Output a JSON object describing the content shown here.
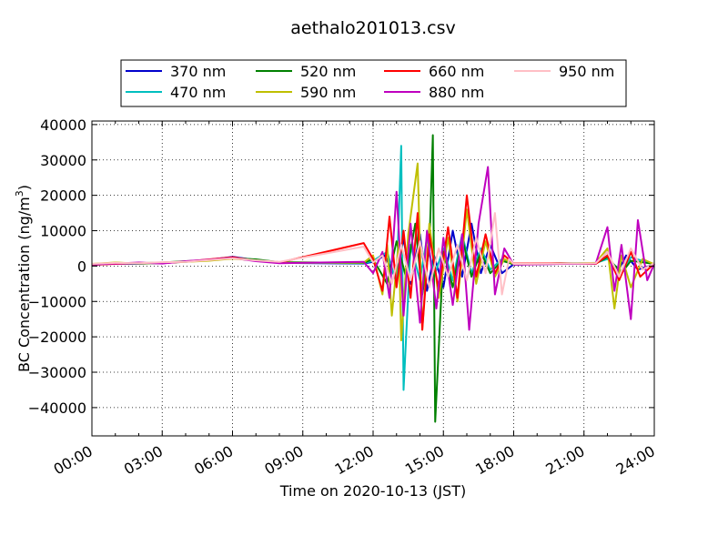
{
  "chart_data": {
    "type": "line",
    "title": "aethalo201013.csv",
    "xlabel": "Time on 2020-10-13 (JST)",
    "ylabel_main": "BC Concentration (ng/m",
    "ylabel_sup": "3",
    "ylabel_tail": ")",
    "xlim": [
      0,
      24
    ],
    "ylim": [
      -48000,
      41000
    ],
    "x_ticks": [
      0,
      3,
      6,
      9,
      12,
      15,
      18,
      21,
      24
    ],
    "x_tick_labels": [
      "00:00",
      "03:00",
      "06:00",
      "09:00",
      "12:00",
      "15:00",
      "18:00",
      "21:00",
      "24:00"
    ],
    "y_ticks": [
      -40000,
      -30000,
      -20000,
      -10000,
      0,
      10000,
      20000,
      30000,
      40000
    ],
    "y_tick_labels": [
      "−40000",
      "−30000",
      "−20000",
      "−10000",
      "0",
      "10000",
      "20000",
      "30000",
      "40000"
    ],
    "grid": true,
    "legend_position": "top-center",
    "series": [
      {
        "name": "370 nm",
        "color": "#0000cc",
        "points": [
          [
            0,
            300
          ],
          [
            1,
            700
          ],
          [
            2,
            600
          ],
          [
            3,
            900
          ],
          [
            4,
            1200
          ],
          [
            5,
            1800
          ],
          [
            6,
            2600
          ],
          [
            7,
            1700
          ],
          [
            8,
            900
          ],
          [
            11.6,
            700
          ],
          [
            12,
            1200
          ],
          [
            12.5,
            3000
          ],
          [
            13,
            -4000
          ],
          [
            13.3,
            8000
          ],
          [
            13.6,
            -5000
          ],
          [
            14,
            9000
          ],
          [
            14.3,
            -7000
          ],
          [
            14.6,
            3000
          ],
          [
            15,
            -6000
          ],
          [
            15.4,
            10000
          ],
          [
            15.8,
            -3000
          ],
          [
            16.2,
            12000
          ],
          [
            16.6,
            -2000
          ],
          [
            17,
            6000
          ],
          [
            17.5,
            -2000
          ],
          [
            18,
            500
          ],
          [
            20,
            600
          ],
          [
            21.5,
            800
          ],
          [
            22,
            4000
          ],
          [
            22.4,
            -2000
          ],
          [
            22.8,
            3000
          ],
          [
            23.3,
            -1000
          ],
          [
            24,
            500
          ]
        ]
      },
      {
        "name": "470 nm",
        "color": "#00bfbf",
        "points": [
          [
            0,
            400
          ],
          [
            1,
            800
          ],
          [
            2,
            700
          ],
          [
            3,
            800
          ],
          [
            4,
            1300
          ],
          [
            5,
            1700
          ],
          [
            6,
            2400
          ],
          [
            7,
            1800
          ],
          [
            8,
            1000
          ],
          [
            11.6,
            800
          ],
          [
            12,
            1500
          ],
          [
            12.6,
            4000
          ],
          [
            13,
            -5000
          ],
          [
            13.2,
            34000
          ],
          [
            13.3,
            -35000
          ],
          [
            13.6,
            6000
          ],
          [
            14,
            -4000
          ],
          [
            14.3,
            8000
          ],
          [
            14.6,
            -3000
          ],
          [
            15,
            5000
          ],
          [
            15.4,
            -4000
          ],
          [
            15.8,
            9000
          ],
          [
            16.2,
            -2000
          ],
          [
            16.6,
            5000
          ],
          [
            17,
            -1000
          ],
          [
            17.5,
            2000
          ],
          [
            18,
            400
          ],
          [
            20,
            700
          ],
          [
            21.5,
            900
          ],
          [
            22,
            2000
          ],
          [
            22.6,
            -1500
          ],
          [
            23,
            2500
          ],
          [
            24,
            400
          ]
        ]
      },
      {
        "name": "520 nm",
        "color": "#008000",
        "points": [
          [
            0,
            500
          ],
          [
            1,
            900
          ],
          [
            2,
            800
          ],
          [
            3,
            1000
          ],
          [
            4,
            1400
          ],
          [
            5,
            1600
          ],
          [
            6,
            2200
          ],
          [
            7,
            1900
          ],
          [
            8,
            1100
          ],
          [
            11.6,
            900
          ],
          [
            12,
            2000
          ],
          [
            12.6,
            -5000
          ],
          [
            13,
            7000
          ],
          [
            13.4,
            -3000
          ],
          [
            13.8,
            12000
          ],
          [
            14.1,
            -8000
          ],
          [
            14.4,
            5000
          ],
          [
            14.55,
            37000
          ],
          [
            14.65,
            -44000
          ],
          [
            15,
            4000
          ],
          [
            15.4,
            -6000
          ],
          [
            15.8,
            8000
          ],
          [
            16.2,
            -3000
          ],
          [
            16.6,
            4000
          ],
          [
            17,
            -2000
          ],
          [
            17.5,
            1500
          ],
          [
            18,
            500
          ],
          [
            20,
            800
          ],
          [
            21.5,
            700
          ],
          [
            22,
            2500
          ],
          [
            22.6,
            -2000
          ],
          [
            23,
            1500
          ],
          [
            24,
            600
          ]
        ]
      },
      {
        "name": "590 nm",
        "color": "#bfbf00",
        "points": [
          [
            0,
            600
          ],
          [
            1,
            1000
          ],
          [
            2,
            700
          ],
          [
            3,
            900
          ],
          [
            4,
            1200
          ],
          [
            5,
            1500
          ],
          [
            6,
            2100
          ],
          [
            7,
            1600
          ],
          [
            8,
            900
          ],
          [
            11.6,
            1000
          ],
          [
            12,
            3000
          ],
          [
            12.4,
            -8000
          ],
          [
            12.6,
            6000
          ],
          [
            12.8,
            -14000
          ],
          [
            13.1,
            7000
          ],
          [
            13.2,
            -21000
          ],
          [
            13.5,
            9000
          ],
          [
            13.9,
            29000
          ],
          [
            14.1,
            -18000
          ],
          [
            14.4,
            12000
          ],
          [
            14.8,
            -9000
          ],
          [
            15.2,
            8000
          ],
          [
            15.6,
            -10000
          ],
          [
            16,
            16000
          ],
          [
            16.4,
            -5000
          ],
          [
            16.8,
            7000
          ],
          [
            17.2,
            -3000
          ],
          [
            17.6,
            2000
          ],
          [
            18,
            600
          ],
          [
            20,
            700
          ],
          [
            21.5,
            900
          ],
          [
            22,
            5000
          ],
          [
            22.3,
            -12000
          ],
          [
            22.6,
            3000
          ],
          [
            23,
            -6000
          ],
          [
            23.5,
            2000
          ],
          [
            24,
            500
          ]
        ]
      },
      {
        "name": "660 nm",
        "color": "#ff0000",
        "points": [
          [
            0,
            400
          ],
          [
            1,
            600
          ],
          [
            2,
            900
          ],
          [
            3,
            800
          ],
          [
            4,
            1300
          ],
          [
            5,
            1900
          ],
          [
            6,
            2500
          ],
          [
            7,
            1500
          ],
          [
            8,
            1000
          ],
          [
            11.6,
            6500
          ],
          [
            12,
            2000
          ],
          [
            12.4,
            -7000
          ],
          [
            12.7,
            14000
          ],
          [
            13,
            -6000
          ],
          [
            13.3,
            10000
          ],
          [
            13.6,
            -9000
          ],
          [
            13.9,
            15000
          ],
          [
            14.1,
            -18000
          ],
          [
            14.4,
            9000
          ],
          [
            14.8,
            -7000
          ],
          [
            15.2,
            11000
          ],
          [
            15.6,
            -9000
          ],
          [
            16,
            20000
          ],
          [
            16.4,
            -3000
          ],
          [
            16.8,
            9000
          ],
          [
            17.2,
            -2000
          ],
          [
            17.6,
            3000
          ],
          [
            18,
            700
          ],
          [
            20,
            800
          ],
          [
            21.5,
            600
          ],
          [
            22,
            3000
          ],
          [
            22.5,
            -4000
          ],
          [
            23,
            4000
          ],
          [
            23.4,
            -3000
          ],
          [
            24,
            700
          ]
        ]
      },
      {
        "name": "880 nm",
        "color": "#bf00bf",
        "points": [
          [
            0,
            500
          ],
          [
            1,
            700
          ],
          [
            2,
            1000
          ],
          [
            3,
            700
          ],
          [
            4,
            1400
          ],
          [
            5,
            1800
          ],
          [
            6,
            2300
          ],
          [
            7,
            1400
          ],
          [
            8,
            800
          ],
          [
            11.6,
            1200
          ],
          [
            12,
            -2000
          ],
          [
            12.4,
            4000
          ],
          [
            12.7,
            -9000
          ],
          [
            13,
            21000
          ],
          [
            13.3,
            -14000
          ],
          [
            13.6,
            12000
          ],
          [
            14,
            -16000
          ],
          [
            14.3,
            10000
          ],
          [
            14.7,
            -12000
          ],
          [
            15,
            8000
          ],
          [
            15.4,
            -11000
          ],
          [
            15.8,
            9000
          ],
          [
            16.1,
            -18000
          ],
          [
            16.5,
            12000
          ],
          [
            16.9,
            28000
          ],
          [
            17.2,
            -8000
          ],
          [
            17.6,
            5000
          ],
          [
            18,
            400
          ],
          [
            20,
            600
          ],
          [
            21.5,
            700
          ],
          [
            22,
            11000
          ],
          [
            22.3,
            -7000
          ],
          [
            22.6,
            6000
          ],
          [
            23,
            -15000
          ],
          [
            23.3,
            13000
          ],
          [
            23.7,
            -4000
          ],
          [
            24,
            600
          ]
        ]
      },
      {
        "name": "950 nm",
        "color": "#ffbfc5",
        "points": [
          [
            0,
            600
          ],
          [
            1,
            900
          ],
          [
            2,
            800
          ],
          [
            3,
            1100
          ],
          [
            4,
            1200
          ],
          [
            5,
            1700
          ],
          [
            6,
            2200
          ],
          [
            7,
            1600
          ],
          [
            8,
            1200
          ],
          [
            11.6,
            5500
          ],
          [
            12,
            1000
          ],
          [
            12.4,
            3000
          ],
          [
            12.8,
            -5000
          ],
          [
            13.2,
            6000
          ],
          [
            13.6,
            -4000
          ],
          [
            14,
            7000
          ],
          [
            14.4,
            -6000
          ],
          [
            14.8,
            5000
          ],
          [
            15.2,
            -3000
          ],
          [
            15.6,
            6000
          ],
          [
            16,
            -4000
          ],
          [
            16.4,
            8000
          ],
          [
            16.8,
            -2000
          ],
          [
            17.2,
            15000
          ],
          [
            17.5,
            -8000
          ],
          [
            17.8,
            2000
          ],
          [
            18,
            600
          ],
          [
            20,
            700
          ],
          [
            21.5,
            800
          ],
          [
            22,
            4000
          ],
          [
            22.5,
            -3000
          ],
          [
            23,
            5000
          ],
          [
            23.5,
            -1000
          ],
          [
            24,
            800
          ]
        ]
      }
    ]
  }
}
